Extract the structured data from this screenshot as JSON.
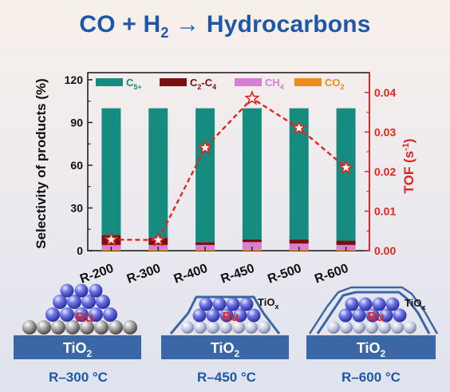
{
  "title": {
    "part1": "CO + H",
    "sub": "2",
    "part2": " → Hydrocarbons"
  },
  "colors": {
    "title": "#1f57a8",
    "c5plus": "#168c80",
    "c2c4": "#7a0f12",
    "ch4": "#d77fd6",
    "co2": "#f08a18",
    "tof": "#e3251f",
    "tio2_block": "#3b67a6",
    "ru_text": "#e3251f",
    "caption": "#1f57a8"
  },
  "chart_data": {
    "type": "bar",
    "categories": [
      "R-200",
      "R-300",
      "R-400",
      "R-450",
      "R-500",
      "R-600"
    ],
    "series": [
      {
        "name": "CO2",
        "name_base": "CO",
        "name_sub": "2",
        "values": [
          1,
          1,
          1,
          1,
          1,
          1
        ]
      },
      {
        "name": "CH4",
        "name_base": "CH",
        "name_sub": "4",
        "values": [
          3,
          3,
          3,
          5,
          4,
          3
        ]
      },
      {
        "name": "C2-C4",
        "name_base": "C",
        "name_sub": "2",
        "name_mid": "-C",
        "name_sub2": "4",
        "values": [
          7,
          5,
          2,
          2,
          3,
          3
        ]
      },
      {
        "name": "C5+",
        "name_base": "C",
        "name_sub": "5+",
        "values": [
          89,
          91,
          94,
          92,
          92,
          93
        ]
      }
    ],
    "tof": {
      "values": [
        0.0028,
        0.0027,
        0.026,
        0.0385,
        0.031,
        0.021
      ],
      "ylim": [
        0,
        0.045
      ]
    },
    "ylabel": "Selectivity of products (%)",
    "y2label": {
      "base": "TOF (s",
      "sup": "-1",
      "end": ")"
    },
    "ylim": [
      0,
      125
    ],
    "yticks": [
      0,
      30,
      60,
      90,
      120
    ],
    "y2ticks": [
      "0.00",
      "0.01",
      "0.02",
      "0.03",
      "0.04"
    ],
    "y2tick_values": [
      0,
      0.01,
      0.02,
      0.03,
      0.04
    ],
    "legend": "top"
  },
  "schematics": [
    {
      "support": "TiO",
      "support_sub": "2",
      "particle": "Ru",
      "overlayer": "",
      "overlayer_sub": "",
      "caption": "R–300 °C"
    },
    {
      "support": "TiO",
      "support_sub": "2",
      "particle": "Ru",
      "overlayer": "TiO",
      "overlayer_sub": "x",
      "caption": "R–450 °C"
    },
    {
      "support": "TiO",
      "support_sub": "2",
      "particle": "Ru",
      "overlayer": "TiO",
      "overlayer_sub": "x",
      "caption": "R–600 °C"
    }
  ]
}
